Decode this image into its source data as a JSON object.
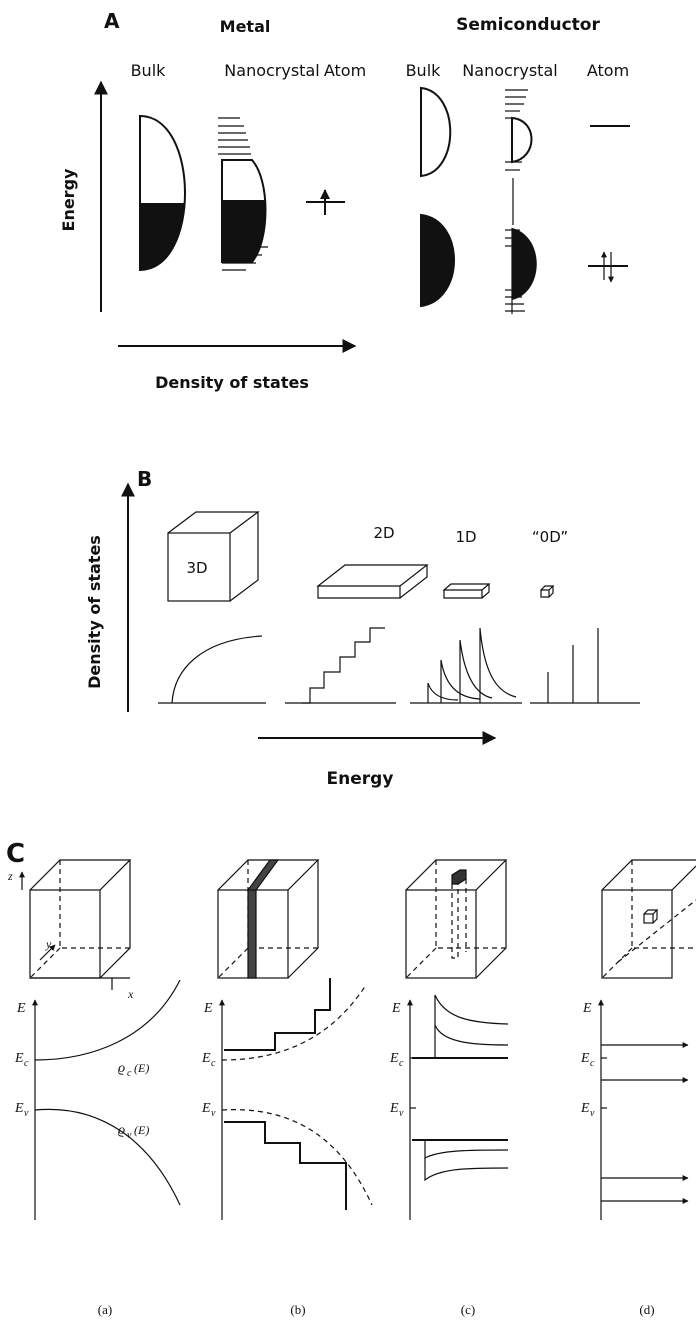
{
  "panel_a": {
    "label": "A",
    "groups": [
      {
        "title": "Metal",
        "columns": [
          "Bulk",
          "Nanocrystal",
          "Atom"
        ]
      },
      {
        "title": "Semiconductor",
        "columns": [
          "Bulk",
          "Nanocrystal",
          "Atom"
        ]
      }
    ],
    "y_axis_label": "Energy",
    "x_axis_label": "Density of states"
  },
  "panel_b": {
    "label": "B",
    "y_axis_label": "Density of states",
    "dimensions": [
      "3D",
      "2D",
      "1D",
      "“0D”"
    ],
    "x_axis_label": "Energy"
  },
  "panel_c": {
    "label": "C",
    "axis_labels": {
      "z": "z",
      "y": "y",
      "x": "x"
    },
    "density_labels": [
      {
        "symbol": "ϱ",
        "subscript": "c",
        "argument": "(E)"
      },
      {
        "symbol": "ϱ",
        "subscript": "v",
        "argument": "(E)"
      }
    ],
    "subpanels": [
      {
        "label": "(a)",
        "energy_axis": "E",
        "conduction_edge": {
          "symbol": "E",
          "subscript": "c"
        },
        "valence_edge": {
          "symbol": "E",
          "subscript": "v"
        }
      },
      {
        "label": "(b)",
        "energy_axis": "E",
        "conduction_edge": {
          "symbol": "E",
          "subscript": "c"
        },
        "valence_edge": {
          "symbol": "E",
          "subscript": "v"
        }
      },
      {
        "label": "(c)",
        "energy_axis": "E",
        "conduction_edge": {
          "symbol": "E",
          "subscript": "c"
        },
        "valence_edge": {
          "symbol": "E",
          "subscript": "v"
        }
      },
      {
        "label": "(d)",
        "energy_axis": "E",
        "conduction_edge": {
          "symbol": "E",
          "subscript": "c"
        },
        "valence_edge": {
          "symbol": "E",
          "subscript": "v"
        }
      }
    ]
  }
}
